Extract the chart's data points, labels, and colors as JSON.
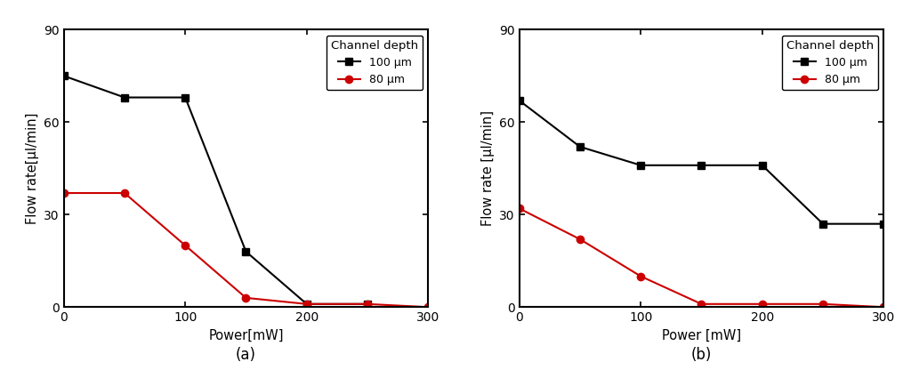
{
  "a": {
    "black_x": [
      0,
      50,
      100,
      150,
      200,
      250
    ],
    "black_y": [
      75,
      68,
      68,
      18,
      1,
      1
    ],
    "red_x": [
      0,
      50,
      100,
      150,
      200,
      250,
      300
    ],
    "red_y": [
      37,
      37,
      20,
      3,
      1,
      1,
      0
    ],
    "xlabel": "Power[mW]",
    "ylabel": "Flow rate[μl/min]",
    "ylim": [
      0,
      90
    ],
    "xlim": [
      0,
      300
    ],
    "xticks": [
      0,
      100,
      200,
      300
    ],
    "yticks": [
      0,
      30,
      60,
      90
    ],
    "label": "(a)"
  },
  "b": {
    "black_x": [
      0,
      50,
      100,
      150,
      200,
      250,
      300
    ],
    "black_y": [
      67,
      52,
      46,
      46,
      46,
      27,
      27
    ],
    "red_x": [
      0,
      50,
      100,
      150,
      200,
      250,
      300
    ],
    "red_y": [
      32,
      22,
      10,
      1,
      1,
      1,
      0
    ],
    "xlabel": "Power [mW]",
    "ylabel": "Flow rate [μl/min]",
    "ylim": [
      0,
      90
    ],
    "xlim": [
      0,
      300
    ],
    "xticks": [
      0,
      100,
      200,
      300
    ],
    "yticks": [
      0,
      30,
      60,
      90
    ],
    "label": "(b)"
  },
  "legend_title": "Channel depth",
  "legend_black": "100 μm",
  "legend_red": "80 μm",
  "black_color": "#000000",
  "red_color": "#cc0000",
  "fig_width": 10.24,
  "fig_height": 4.16,
  "dpi": 100
}
